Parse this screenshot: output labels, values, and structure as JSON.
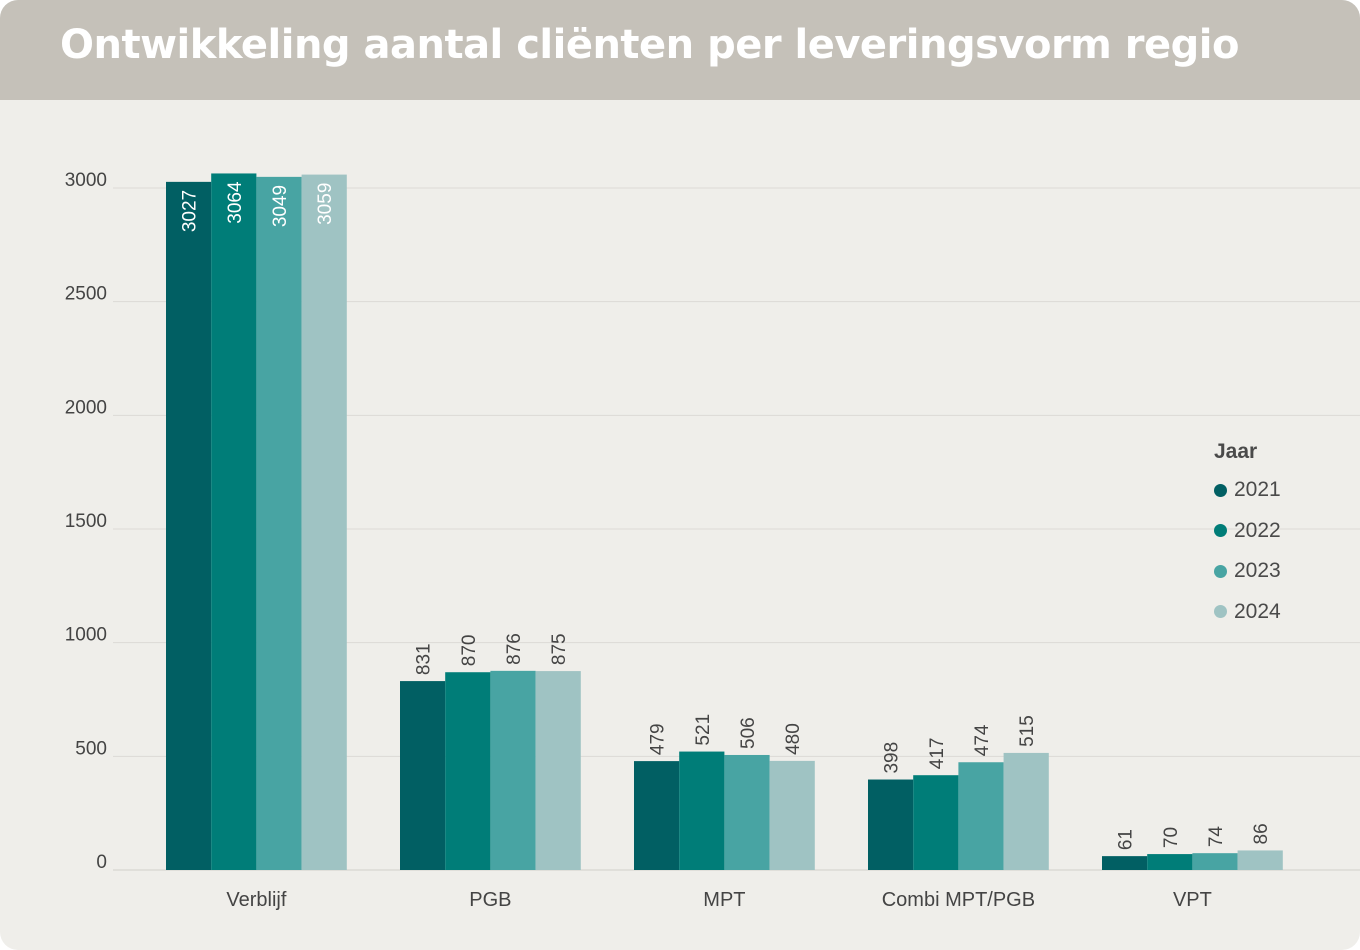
{
  "header": {
    "title": "Ontwikkeling aantal cliënten per leveringsvorm regio"
  },
  "chart_data": {
    "type": "bar",
    "title": "Ontwikkeling aantal cliënten per leveringsvorm regio",
    "xlabel": "",
    "ylabel": "",
    "categories": [
      "Verblijf",
      "PGB",
      "MPT",
      "Combi MPT/PGB",
      "VPT"
    ],
    "series": [
      {
        "name": "2021",
        "color": "#015f63",
        "values": [
          3027,
          831,
          479,
          398,
          61
        ]
      },
      {
        "name": "2022",
        "color": "#007d78",
        "values": [
          3064,
          870,
          521,
          417,
          70
        ]
      },
      {
        "name": "2023",
        "color": "#48a4a3",
        "values": [
          3049,
          876,
          506,
          474,
          74
        ]
      },
      {
        "name": "2024",
        "color": "#9fc3c3",
        "values": [
          3059,
          875,
          480,
          515,
          86
        ]
      }
    ],
    "ylim": [
      0,
      3000
    ],
    "yticks": [
      0,
      500,
      1000,
      1500,
      2000,
      2500,
      3000
    ],
    "grid": true,
    "legend": {
      "title": "Jaar",
      "placement": "right"
    },
    "data_labels": "rotated-vertical"
  }
}
